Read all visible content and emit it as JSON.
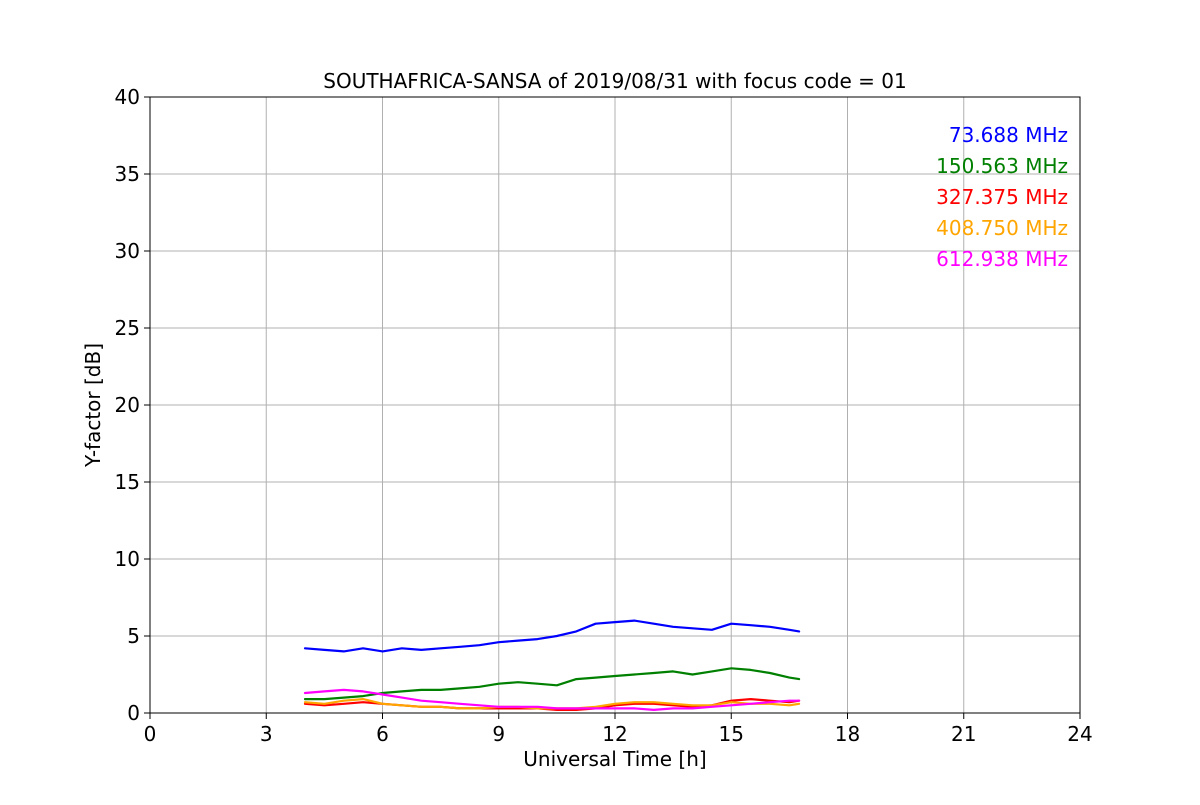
{
  "chart_data": {
    "type": "line",
    "title": "SOUTHAFRICA-SANSA of 2019/08/31 with focus code = 01",
    "xlabel": "Universal Time [h]",
    "ylabel": "Y-factor [dB]",
    "xlim": [
      0,
      24
    ],
    "ylim": [
      0,
      40
    ],
    "xticks": [
      0,
      3,
      6,
      9,
      12,
      15,
      18,
      21,
      24
    ],
    "yticks": [
      0,
      5,
      10,
      15,
      20,
      25,
      30,
      35,
      40
    ],
    "grid": true,
    "legend_position": "top-right",
    "series": [
      {
        "name": "73.688 MHz",
        "color": "#0000ff",
        "x": [
          4.0,
          4.5,
          5.0,
          5.5,
          6.0,
          6.5,
          7.0,
          7.5,
          8.0,
          8.5,
          9.0,
          9.5,
          10.0,
          10.5,
          11.0,
          11.5,
          12.0,
          12.5,
          13.0,
          13.5,
          14.0,
          14.5,
          15.0,
          15.5,
          16.0,
          16.5,
          16.75
        ],
        "y": [
          4.2,
          4.1,
          4.0,
          4.2,
          4.0,
          4.2,
          4.1,
          4.2,
          4.3,
          4.4,
          4.6,
          4.7,
          4.8,
          5.0,
          5.3,
          5.8,
          5.9,
          6.0,
          5.8,
          5.6,
          5.5,
          5.4,
          5.8,
          5.7,
          5.6,
          5.4,
          5.3
        ]
      },
      {
        "name": "150.563 MHz",
        "color": "#008000",
        "x": [
          4.0,
          4.5,
          5.0,
          5.5,
          6.0,
          6.5,
          7.0,
          7.5,
          8.0,
          8.5,
          9.0,
          9.5,
          10.0,
          10.5,
          11.0,
          11.5,
          12.0,
          12.5,
          13.0,
          13.5,
          14.0,
          14.5,
          15.0,
          15.5,
          16.0,
          16.5,
          16.75
        ],
        "y": [
          0.9,
          0.9,
          1.0,
          1.1,
          1.3,
          1.4,
          1.5,
          1.5,
          1.6,
          1.7,
          1.9,
          2.0,
          1.9,
          1.8,
          2.2,
          2.3,
          2.4,
          2.5,
          2.6,
          2.7,
          2.5,
          2.7,
          2.9,
          2.8,
          2.6,
          2.3,
          2.2
        ]
      },
      {
        "name": "327.375 MHz",
        "color": "#ff0000",
        "x": [
          4.0,
          4.5,
          5.0,
          5.5,
          6.0,
          6.5,
          7.0,
          7.5,
          8.0,
          8.5,
          9.0,
          9.5,
          10.0,
          10.5,
          11.0,
          11.5,
          12.0,
          12.5,
          13.0,
          13.5,
          14.0,
          14.5,
          15.0,
          15.5,
          16.0,
          16.5,
          16.75
        ],
        "y": [
          0.6,
          0.5,
          0.6,
          0.7,
          0.6,
          0.5,
          0.4,
          0.4,
          0.3,
          0.3,
          0.3,
          0.3,
          0.3,
          0.2,
          0.2,
          0.3,
          0.5,
          0.6,
          0.6,
          0.5,
          0.4,
          0.5,
          0.8,
          0.9,
          0.8,
          0.7,
          0.8
        ]
      },
      {
        "name": "408.750 MHz",
        "color": "#ffa500",
        "x": [
          4.0,
          4.5,
          5.0,
          5.5,
          6.0,
          6.5,
          7.0,
          7.5,
          8.0,
          8.5,
          9.0,
          9.5,
          10.0,
          10.5,
          11.0,
          11.5,
          12.0,
          12.5,
          13.0,
          13.5,
          14.0,
          14.5,
          15.0,
          15.5,
          16.0,
          16.5,
          16.75
        ],
        "y": [
          0.7,
          0.6,
          0.8,
          0.9,
          0.6,
          0.5,
          0.4,
          0.4,
          0.3,
          0.3,
          0.4,
          0.4,
          0.3,
          0.3,
          0.3,
          0.4,
          0.6,
          0.7,
          0.7,
          0.6,
          0.5,
          0.5,
          0.7,
          0.6,
          0.6,
          0.5,
          0.6
        ]
      },
      {
        "name": "612.938 MHz",
        "color": "#ff00ff",
        "x": [
          4.0,
          4.5,
          5.0,
          5.5,
          6.0,
          6.5,
          7.0,
          7.5,
          8.0,
          8.5,
          9.0,
          9.5,
          10.0,
          10.5,
          11.0,
          11.5,
          12.0,
          12.5,
          13.0,
          13.5,
          14.0,
          14.5,
          15.0,
          15.5,
          16.0,
          16.5,
          16.75
        ],
        "y": [
          1.3,
          1.4,
          1.5,
          1.4,
          1.2,
          1.0,
          0.8,
          0.7,
          0.6,
          0.5,
          0.4,
          0.4,
          0.4,
          0.3,
          0.3,
          0.3,
          0.3,
          0.3,
          0.2,
          0.3,
          0.3,
          0.4,
          0.5,
          0.6,
          0.7,
          0.8,
          0.8
        ]
      }
    ]
  }
}
